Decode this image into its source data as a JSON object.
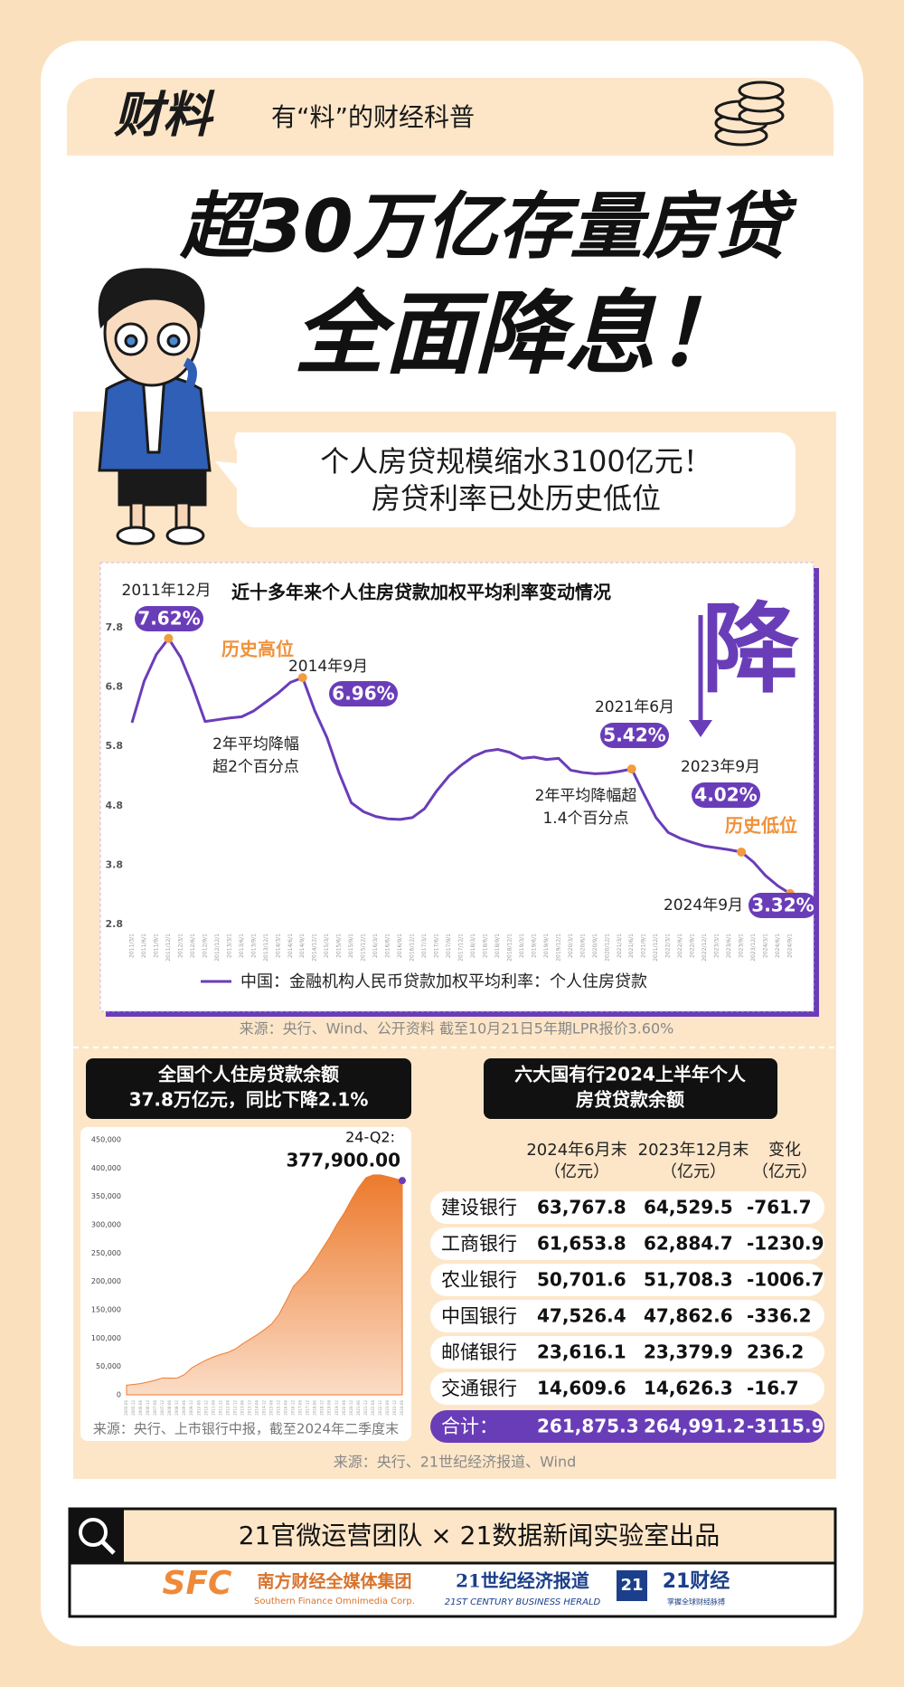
{
  "header": {
    "logo": "财料",
    "slogan": "有“料”的财经科普"
  },
  "headline": [
    "超30万亿存量房贷",
    "全面降息！"
  ],
  "bubble": [
    "个人房贷规模缩水3100亿元！",
    "房贷利率已处历史低位"
  ],
  "chart_data": [
    {
      "type": "line",
      "title": "近十多年来个人住房贷款加权平均利率变动情况",
      "x": [
        "2011/3/1",
        "2011/6/1",
        "2011/9/1",
        "2011/12/1",
        "2012/3/1",
        "2012/6/1",
        "2012/9/1",
        "2012/12/1",
        "2013/3/1",
        "2013/6/1",
        "2013/9/1",
        "2013/12/1",
        "2014/3/1",
        "2014/6/1",
        "2014/9/1",
        "2014/12/1",
        "2015/3/1",
        "2015/6/1",
        "2015/9/1",
        "2015/12/1",
        "2016/3/1",
        "2016/6/1",
        "2016/9/1",
        "2016/12/1",
        "2017/3/1",
        "2017/6/1",
        "2017/9/1",
        "2017/12/1",
        "2018/3/1",
        "2018/6/1",
        "2018/9/1",
        "2018/12/1",
        "2019/3/1",
        "2019/6/1",
        "2019/9/1",
        "2019/12/1",
        "2020/3/1",
        "2020/6/1",
        "2020/9/1",
        "2020/12/1",
        "2021/3/1",
        "2021/6/1",
        "2021/9/1",
        "2021/12/1",
        "2022/3/1",
        "2022/6/1",
        "2022/9/1",
        "2022/12/1",
        "2023/3/1",
        "2023/6/1",
        "2023/9/1",
        "2023/12/1",
        "2024/3/1",
        "2024/6/1",
        "2024/9/1"
      ],
      "series": [
        {
          "name": "中国：金融机构人民币贷款加权平均利率：个人住房贷款",
          "color": "#6a3db8",
          "values": [
            6.2,
            6.9,
            7.35,
            7.62,
            7.3,
            6.8,
            6.22,
            6.25,
            6.28,
            6.3,
            6.4,
            6.55,
            6.7,
            6.88,
            6.96,
            6.4,
            5.95,
            5.35,
            4.85,
            4.7,
            4.62,
            4.58,
            4.57,
            4.6,
            4.75,
            5.05,
            5.3,
            5.48,
            5.63,
            5.72,
            5.75,
            5.7,
            5.6,
            5.62,
            5.58,
            5.6,
            5.4,
            5.36,
            5.34,
            5.35,
            5.38,
            5.42,
            5.0,
            4.6,
            4.35,
            4.25,
            4.18,
            4.12,
            4.09,
            4.06,
            4.02,
            3.85,
            3.62,
            3.45,
            3.32
          ],
          "value_labels": [
            null,
            null,
            null,
            "7.62%",
            null,
            null,
            null,
            null,
            null,
            null,
            null,
            null,
            null,
            null,
            "6.96%",
            null,
            null,
            null,
            null,
            null,
            null,
            null,
            null,
            null,
            null,
            null,
            null,
            null,
            null,
            null,
            null,
            null,
            null,
            null,
            null,
            null,
            null,
            null,
            null,
            null,
            null,
            "5.42%",
            null,
            null,
            null,
            null,
            null,
            null,
            null,
            null,
            "4.02%",
            null,
            null,
            null,
            "3.32%"
          ]
        }
      ],
      "ylim": [
        2.8,
        7.8
      ],
      "yticks": [
        2.8,
        3.8,
        4.8,
        5.8,
        6.8,
        7.8
      ],
      "grid": false,
      "annotations": [
        "2011年12月",
        "历史高位",
        "2014年9月",
        "2年平均降幅",
        "超2个百分点",
        "2021年6月",
        "2023年9月",
        "历史低位",
        "2年平均降幅超",
        "1.4个百分点",
        "2024年9月",
        "降"
      ],
      "source": "来源：央行、Wind、公开资料  截至10月21日5年期LPR报价3.60%"
    },
    {
      "type": "area",
      "title": [
        "全国个人住房贷款余额",
        "37.8万亿元，同比下降2.1%"
      ],
      "x": [
        "2005-06",
        "2005-12",
        "2006-06",
        "2006-12",
        "2007-06",
        "2007-12",
        "2008-06",
        "2008-12",
        "2009-06",
        "2009-12",
        "2010-06",
        "2010-12",
        "2011-06",
        "2011-12",
        "2012-06",
        "2012-12",
        "2013-06",
        "2013-12",
        "2014-06",
        "2014-12",
        "2015-06",
        "2015-12",
        "2016-06",
        "2016-12",
        "2017-06",
        "2017-12",
        "2018-06",
        "2018-12",
        "2019-06",
        "2019-12",
        "2020-06",
        "2020-12",
        "2021-06",
        "2021-12",
        "2022-06",
        "2022-12",
        "2023-06",
        "2023-12",
        "2024-06"
      ],
      "series": [
        {
          "color": "#ee7d2f",
          "values": [
            17000,
            18400,
            20000,
            22700,
            26000,
            30000,
            29500,
            29800,
            36000,
            47600,
            55000,
            61600,
            67000,
            71400,
            75000,
            81000,
            90000,
            98000,
            106000,
            115000,
            125000,
            141800,
            166000,
            191400,
            205000,
            218600,
            238000,
            258000,
            278000,
            301000,
            321000,
            344400,
            366000,
            383200,
            388000,
            388000,
            385000,
            381700,
            377900
          ],
          "value_labels": [
            null,
            null,
            null,
            null,
            null,
            null,
            null,
            null,
            null,
            null,
            null,
            null,
            null,
            null,
            null,
            null,
            null,
            null,
            null,
            null,
            null,
            null,
            null,
            null,
            null,
            null,
            null,
            null,
            null,
            null,
            null,
            null,
            null,
            null,
            null,
            null,
            null,
            null,
            "377,900.00"
          ]
        }
      ],
      "ylim": [
        0,
        450000
      ],
      "yticks": [
        0,
        {
          "value": 50000,
          "label": "50,000"
        },
        {
          "value": 100000,
          "label": "100,000"
        },
        {
          "value": 150000,
          "label": "150,000"
        },
        {
          "value": 200000,
          "label": "200,000"
        },
        {
          "value": 250000,
          "label": "250,000"
        },
        {
          "value": 300000,
          "label": "300,000"
        },
        {
          "value": 350000,
          "label": "350,000"
        },
        {
          "value": 400000,
          "label": "400,000"
        },
        {
          "value": 450000,
          "label": "450,000"
        }
      ],
      "grid": false,
      "annotations": [
        "24-Q2:"
      ],
      "source": "来源：央行、上市银行中报，截至2024年二季度末"
    }
  ],
  "table": {
    "title": [
      "六大国有行2024上半年个人",
      "房贷贷款余额"
    ],
    "columns": [
      [
        "2024年6月末",
        "（亿元）"
      ],
      [
        "2023年12月末",
        "（亿元）"
      ],
      [
        "变化",
        "（亿元）"
      ]
    ],
    "rows": [
      [
        "建设银行",
        "63,767.8",
        "64,529.5",
        "-761.7"
      ],
      [
        "工商银行",
        "61,653.8",
        "62,884.7",
        "-1230.9"
      ],
      [
        "农业银行",
        "50,701.6",
        "51,708.3",
        "-1006.7"
      ],
      [
        "中国银行",
        "47,526.4",
        "47,862.6",
        "-336.2"
      ],
      [
        "邮储银行",
        "23,616.1",
        "23,379.9",
        "236.2"
      ],
      [
        "交通银行",
        "14,609.6",
        "14,626.3",
        "-16.7"
      ]
    ],
    "total": [
      "合计：",
      "261,875.3",
      "264,991.2",
      "-3115.9"
    ],
    "source": "来源：央行、21世纪经济报道、Wind"
  },
  "footer": {
    "credit": "21官微运营团队 × 21数据新闻实验室出品",
    "logos": [
      "SFC",
      "南方财经全媒体集团",
      "Southern Finance Omnimedia Corp.",
      "21世纪经济报道",
      "21ST CENTURY BUSINESS HERALD",
      "21",
      "21财经",
      "掌握全球财经脉搏"
    ]
  }
}
